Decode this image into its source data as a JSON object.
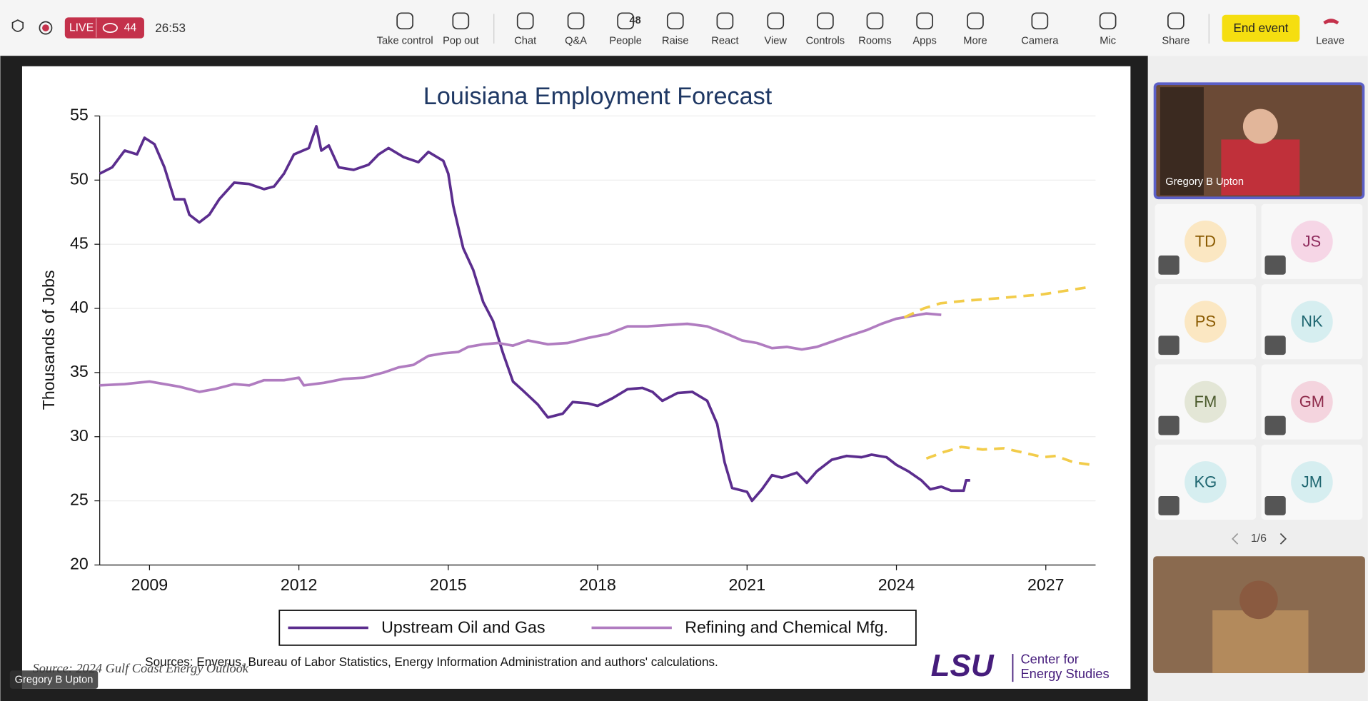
{
  "toolbar": {
    "live": "LIVE",
    "viewers": 44,
    "time": "26:53",
    "buttons": [
      "Take control",
      "Pop out",
      "Chat",
      "Q&A",
      "People",
      "Raise",
      "React",
      "View",
      "Controls",
      "Rooms",
      "Apps",
      "More",
      "Camera",
      "Mic",
      "Share"
    ],
    "people_count": 48,
    "end": "End event",
    "leave": "Leave"
  },
  "chart_data": {
    "type": "line",
    "title": "Louisiana Employment Forecast",
    "y_label": "Thousands of Jobs",
    "xlim": [
      2008,
      2028
    ],
    "xticks": [
      2009,
      2012,
      2015,
      2018,
      2021,
      2024,
      2027
    ],
    "ylim": [
      20,
      55
    ],
    "yticks": [
      20,
      25,
      30,
      35,
      40,
      45,
      50,
      55
    ],
    "grid": true,
    "legend": "bottom",
    "series": [
      {
        "name": "Upstream Oil and Gas",
        "color": "#5b2d8e",
        "dashed": false,
        "x": [
          2008.0,
          2008.25,
          2008.5,
          2008.75,
          2008.9,
          2009.1,
          2009.3,
          2009.5,
          2009.7,
          2009.8,
          2010.0,
          2010.2,
          2010.4,
          2010.7,
          2011.0,
          2011.3,
          2011.5,
          2011.7,
          2011.9,
          2012.2,
          2012.35,
          2012.45,
          2012.6,
          2012.8,
          2013.1,
          2013.4,
          2013.6,
          2013.8,
          2014.1,
          2014.4,
          2014.6,
          2014.9,
          2015.0,
          2015.1,
          2015.3,
          2015.5,
          2015.7,
          2015.9,
          2016.1,
          2016.3,
          2016.5,
          2016.8,
          2017.0,
          2017.3,
          2017.5,
          2017.8,
          2018.0,
          2018.3,
          2018.6,
          2018.9,
          2019.1,
          2019.3,
          2019.6,
          2019.9,
          2020.2,
          2020.4,
          2020.55,
          2020.7,
          2021.0,
          2021.1,
          2021.3,
          2021.5,
          2021.7,
          2022.0,
          2022.2,
          2022.4,
          2022.7,
          2023.0,
          2023.3,
          2023.5,
          2023.8,
          2024.0,
          2024.24,
          2024.5,
          2024.68,
          2024.9,
          2025.1,
          2025.35,
          2025.4,
          2025.48
        ],
        "values": [
          50.5,
          51,
          52.3,
          52,
          53.3,
          52.8,
          51,
          48.5,
          48.5,
          47.3,
          46.7,
          47.3,
          48.5,
          49.8,
          49.7,
          49.3,
          49.5,
          50.5,
          52,
          52.5,
          54.2,
          52.3,
          52.7,
          51,
          50.8,
          51.2,
          52,
          52.5,
          51.8,
          51.4,
          52.2,
          51.5,
          50.5,
          48,
          44.7,
          43,
          40.5,
          39,
          36.5,
          34.3,
          33.6,
          32.5,
          31.5,
          31.8,
          32.7,
          32.6,
          32.4,
          33,
          33.7,
          33.8,
          33.5,
          32.8,
          33.4,
          33.5,
          32.8,
          31,
          28,
          26,
          25.7,
          25,
          25.9,
          27,
          26.8,
          27.2,
          26.4,
          27.3,
          28.2,
          28.5,
          28.4,
          28.6,
          28.4,
          27.8,
          27.3,
          26.6,
          25.9,
          26.1,
          25.8,
          25.8,
          26.6,
          26.6
        ]
      },
      {
        "name": "Refining and Chemical Mfg.",
        "color": "#b07cc0",
        "dashed": false,
        "x": [
          2008.0,
          2008.5,
          2009.0,
          2009.3,
          2009.6,
          2010.0,
          2010.3,
          2010.7,
          2011.0,
          2011.3,
          2011.7,
          2012.0,
          2012.1,
          2012.5,
          2012.9,
          2013.3,
          2013.7,
          2014.0,
          2014.3,
          2014.6,
          2014.9,
          2015.2,
          2015.4,
          2015.7,
          2016.0,
          2016.3,
          2016.6,
          2017.0,
          2017.4,
          2017.8,
          2018.2,
          2018.6,
          2019.0,
          2019.4,
          2019.8,
          2020.2,
          2020.6,
          2020.9,
          2021.2,
          2021.5,
          2021.8,
          2022.1,
          2022.4,
          2022.7,
          2023.0,
          2023.4,
          2023.7,
          2024.0,
          2024.3,
          2024.6,
          2024.9
        ],
        "values": [
          34,
          34.1,
          34.3,
          34.1,
          33.9,
          33.5,
          33.7,
          34.1,
          34.0,
          34.4,
          34.4,
          34.6,
          34.0,
          34.2,
          34.5,
          34.6,
          35.0,
          35.4,
          35.6,
          36.3,
          36.5,
          36.6,
          37.0,
          37.2,
          37.3,
          37.1,
          37.5,
          37.2,
          37.3,
          37.7,
          38.0,
          38.6,
          38.6,
          38.7,
          38.8,
          38.6,
          38.0,
          37.5,
          37.3,
          36.9,
          37.0,
          36.8,
          37.0,
          37.4,
          37.8,
          38.3,
          38.8,
          39.2,
          39.4,
          39.6,
          39.5
        ]
      },
      {
        "color": "#f2cc4a",
        "dashed": true,
        "x": [
          2024.6,
          2024.95,
          2025.3,
          2025.73,
          2026.16,
          2026.5,
          2026.95,
          2027.2,
          2027.56,
          2027.93
        ],
        "values": [
          28.3,
          28.8,
          29.2,
          29.0,
          29.1,
          28.8,
          28.4,
          28.5,
          28.0,
          27.8
        ]
      },
      {
        "color": "#f2cc4a",
        "dashed": true,
        "x": [
          2024.16,
          2024.55,
          2024.89,
          2025.38,
          2026.08,
          2026.95,
          2027.93
        ],
        "values": [
          39.3,
          40.0,
          40.4,
          40.6,
          40.8,
          41.1,
          41.7
        ]
      }
    ]
  },
  "slide": {
    "sources": "Sources: Enverus, Bureau of Labor Statistics, Energy Information Administration and authors' calculations.",
    "source_note": "Source: 2024 Gulf Coast Energy Outlook",
    "logo": "LSU",
    "logo_lines": [
      "Center for",
      "Energy Studies"
    ]
  },
  "presenter_label": "Gregory B Upton",
  "participants": {
    "featured": "Gregory B Upton",
    "tiles": [
      "TD",
      "JS",
      "PS",
      "NK",
      "FM",
      "GM",
      "KG",
      "JM"
    ],
    "page": "1/6"
  }
}
